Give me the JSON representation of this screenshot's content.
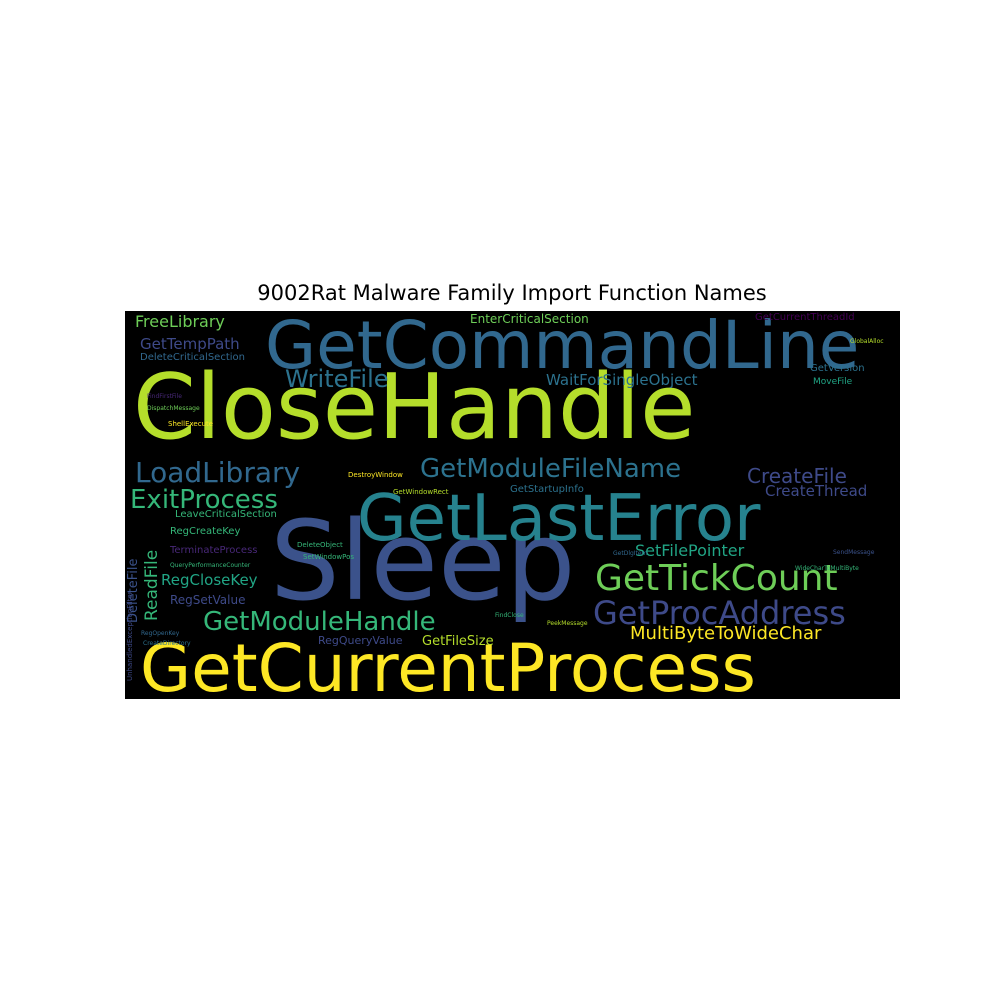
{
  "title": "9002Rat Malware Family Import Function Names",
  "colors": {
    "background": "#000000",
    "yellow": "#fde725",
    "lime": "#b5de2b",
    "green": "#6ece58",
    "teal": "#35b779",
    "cyan": "#21918c",
    "blue": "#31688e",
    "indigo": "#443983",
    "purple": "#440154"
  },
  "words": [
    {
      "id": "closehandle",
      "text": "CloseHandle",
      "color": "#b5de2b"
    },
    {
      "id": "getcurrentprocess",
      "text": "GetCurrentProcess",
      "color": "#fde725"
    },
    {
      "id": "sleep",
      "text": "Sleep",
      "color": "#3b528b"
    },
    {
      "id": "getcommandline",
      "text": "GetCommandLine",
      "color": "#31688e"
    },
    {
      "id": "getlasterror",
      "text": "GetLastError",
      "color": "#26828e"
    },
    {
      "id": "gettickcount",
      "text": "GetTickCount",
      "color": "#6ece58"
    },
    {
      "id": "getprocaddress",
      "text": "GetProcAddress",
      "color": "#3e4a89"
    },
    {
      "id": "getmodulehandle",
      "text": "GetModuleHandle",
      "color": "#35b779"
    },
    {
      "id": "loadlibrary",
      "text": "LoadLibrary",
      "color": "#31688e"
    },
    {
      "id": "getmodulefilename",
      "text": "GetModuleFileName",
      "color": "#2c728e"
    },
    {
      "id": "exitprocess",
      "text": "ExitProcess",
      "color": "#35b779"
    },
    {
      "id": "writefile",
      "text": "WriteFile",
      "color": "#2c728e"
    },
    {
      "id": "createfile",
      "text": "CreateFile",
      "color": "#3e4a89"
    },
    {
      "id": "multibytetowidechar",
      "text": "MultiByteToWideChar",
      "color": "#fde725"
    },
    {
      "id": "setfilepointer",
      "text": "SetFilePointer",
      "color": "#21a585"
    },
    {
      "id": "freelibrary",
      "text": "FreeLibrary",
      "color": "#6ece58"
    },
    {
      "id": "gettemppath",
      "text": "GetTempPath",
      "color": "#3e4a89"
    },
    {
      "id": "waitforsingleobject",
      "text": "WaitForSingleObject",
      "color": "#2c728e"
    },
    {
      "id": "createthread",
      "text": "CreateThread",
      "color": "#3e4a89"
    },
    {
      "id": "regclosekey",
      "text": "RegCloseKey",
      "color": "#21a585"
    },
    {
      "id": "readfile",
      "text": "ReadFile",
      "color": "#35b779"
    },
    {
      "id": "entercriticalsection",
      "text": "EnterCriticalSection",
      "color": "#6ece58"
    },
    {
      "id": "getfilesize",
      "text": "GetFileSize",
      "color": "#b5de2b"
    },
    {
      "id": "regqueryvalue",
      "text": "RegQueryValue",
      "color": "#3e4a89"
    },
    {
      "id": "regsetvalue",
      "text": "RegSetValue",
      "color": "#3e4a89"
    },
    {
      "id": "deletecriticalsection",
      "text": "DeleteCriticalSection",
      "color": "#31688e"
    },
    {
      "id": "getstartupinfo",
      "text": "GetStartupInfo",
      "color": "#2c728e"
    },
    {
      "id": "leavecriticalsection",
      "text": "LeaveCriticalSection",
      "color": "#35b779"
    },
    {
      "id": "regcreatekey",
      "text": "RegCreateKey",
      "color": "#35b779"
    },
    {
      "id": "terminateprocess",
      "text": "TerminateProcess",
      "color": "#482878"
    },
    {
      "id": "getcurrentthreadid",
      "text": "GetCurrentThreadId",
      "color": "#440154"
    },
    {
      "id": "getversion",
      "text": "GetVersion",
      "color": "#2c728e"
    },
    {
      "id": "movefile",
      "text": "MoveFile",
      "color": "#21a585"
    },
    {
      "id": "deletefile",
      "text": "DeleteFile",
      "color": "#3b528b"
    },
    {
      "id": "destroywindow",
      "text": "DestroyWindow",
      "color": "#fde725"
    },
    {
      "id": "getwindowrect",
      "text": "GetWindowRect",
      "color": "#b5de2b"
    },
    {
      "id": "deleteobject",
      "text": "DeleteObject",
      "color": "#35b779"
    },
    {
      "id": "setwindowpos",
      "text": "SetWindowPos",
      "color": "#35b779"
    },
    {
      "id": "getdlgitem",
      "text": "GetDlgItem",
      "color": "#31688e"
    },
    {
      "id": "sendmessage",
      "text": "SendMessage",
      "color": "#3b528b"
    },
    {
      "id": "findclose",
      "text": "FindClose",
      "color": "#35b779"
    },
    {
      "id": "peekmessage",
      "text": "PeekMessage",
      "color": "#b5de2b"
    },
    {
      "id": "shellexecute",
      "text": "ShellExecute",
      "color": "#fde725"
    },
    {
      "id": "createdirectory",
      "text": "CreateDirectory",
      "color": "#2c728e"
    },
    {
      "id": "regopenkey",
      "text": "RegOpenKey",
      "color": "#31688e"
    },
    {
      "id": "queryperformancecounter",
      "text": "QueryPerformanceCounter",
      "color": "#35b779"
    },
    {
      "id": "dispatchmessage",
      "text": "DispatchMessage",
      "color": "#6ece58"
    },
    {
      "id": "findfirstfile",
      "text": "FindFirstFile",
      "color": "#482878"
    },
    {
      "id": "widechartomultibyte",
      "text": "WideCharToMultiByte",
      "color": "#35b779"
    },
    {
      "id": "globalalloc",
      "text": "GlobalAlloc",
      "color": "#b5de2b"
    },
    {
      "id": "unhandledexceptionfilter",
      "text": "UnhandledExceptionFilter",
      "color": "#3e4a89"
    }
  ]
}
